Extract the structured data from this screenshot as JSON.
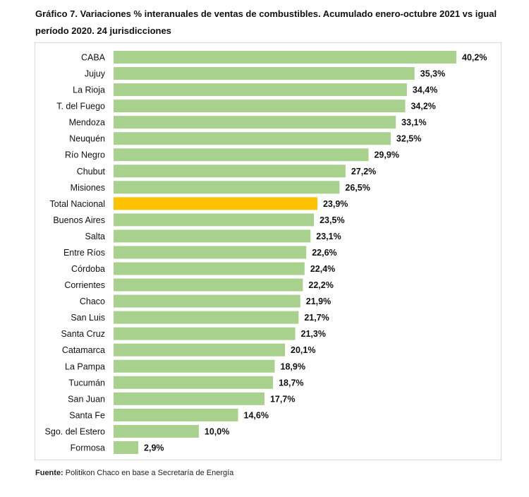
{
  "chart_data": {
    "type": "bar",
    "orientation": "horizontal",
    "title": "Gráfico 7. Variaciones % interanuales de ventas de combustibles. Acumulado enero-octubre 2021 vs igual período 2020. 24 jurisdicciones",
    "categories": [
      "CABA",
      "Jujuy",
      "La Rioja",
      "T. del Fuego",
      "Mendoza",
      "Neuquén",
      "Río Negro",
      "Chubut",
      "Misiones",
      "Total Nacional",
      "Buenos Aires",
      "Salta",
      "Entre Ríos",
      "Córdoba",
      "Corrientes",
      "Chaco",
      "San Luis",
      "Santa Cruz",
      "Catamarca",
      "La Pampa",
      "Tucumán",
      "San Juan",
      "Santa Fe",
      "Sgo. del Estero",
      "Formosa"
    ],
    "values": [
      40.2,
      35.3,
      34.4,
      34.2,
      33.1,
      32.5,
      29.9,
      27.2,
      26.5,
      23.9,
      23.5,
      23.1,
      22.6,
      22.4,
      22.2,
      21.9,
      21.7,
      21.3,
      20.1,
      18.9,
      18.7,
      17.7,
      14.6,
      10.0,
      2.9
    ],
    "data_labels": [
      "40,2%",
      "35,3%",
      "34,4%",
      "34,2%",
      "33,1%",
      "32,5%",
      "29,9%",
      "27,2%",
      "26,5%",
      "23,9%",
      "23,5%",
      "23,1%",
      "22,6%",
      "22,4%",
      "22,2%",
      "21,9%",
      "21,7%",
      "21,3%",
      "20,1%",
      "18,9%",
      "18,7%",
      "17,7%",
      "14,6%",
      "10,0%",
      "2,9%"
    ],
    "highlight": "Total Nacional",
    "colors": {
      "bar": "#a9d18e",
      "highlight": "#ffc000"
    },
    "grid": false,
    "xlabel": "",
    "ylabel": ""
  },
  "footnote": {
    "label": "Fuente:",
    "text": " Politikon Chaco en base a Secretaría de Energía"
  }
}
